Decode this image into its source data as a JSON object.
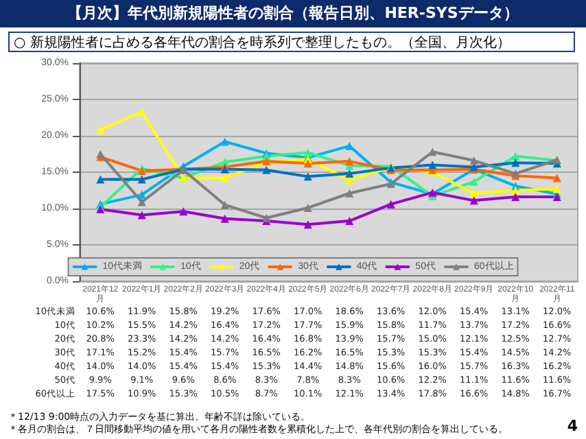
{
  "chart_data": {
    "type": "line",
    "title": "【月次】年代別新規陽性者の割合（報告日別、HER-SYSデータ）",
    "subtitle": "○ 新規陽性者に占める各年代の割合を時系列で整理したもの。（全国、月次化）",
    "categories": [
      "2021年12月",
      "2022年1月",
      "2022年2月",
      "2022年3月",
      "2022年4月",
      "2022年5月",
      "2022年6月",
      "2022年7月",
      "2022年8月",
      "2022年9月",
      "2022年10月",
      "2022年11月"
    ],
    "series": [
      {
        "name": "10代未満",
        "color": "#00b0f0",
        "values": [
          10.6,
          11.9,
          15.8,
          19.2,
          17.6,
          17.0,
          18.6,
          13.6,
          12.0,
          15.4,
          13.1,
          12.0
        ],
        "value_labels": [
          "10.6%",
          "11.9%",
          "15.8%",
          "19.2%",
          "17.6%",
          "17.0%",
          "18.6%",
          "13.6%",
          "12.0%",
          "15.4%",
          "13.1%",
          "12.0%"
        ]
      },
      {
        "name": "10代",
        "color": "#33f08c",
        "values": [
          10.2,
          15.5,
          14.2,
          16.4,
          17.2,
          17.7,
          15.9,
          15.8,
          11.7,
          13.7,
          17.2,
          16.6
        ],
        "value_labels": [
          "10.2%",
          "15.5%",
          "14.2%",
          "16.4%",
          "17.2%",
          "17.7%",
          "15.9%",
          "15.8%",
          "11.7%",
          "13.7%",
          "17.2%",
          "16.6%"
        ]
      },
      {
        "name": "20代",
        "color": "#ffff00",
        "values": [
          20.8,
          23.3,
          14.2,
          14.2,
          16.4,
          16.8,
          13.9,
          15.7,
          15.0,
          12.1,
          12.5,
          12.7
        ],
        "value_labels": [
          "20.8%",
          "23.3%",
          "14.2%",
          "14.2%",
          "16.4%",
          "16.8%",
          "13.9%",
          "15.7%",
          "15.0%",
          "12.1%",
          "12.5%",
          "12.7%"
        ]
      },
      {
        "name": "30代",
        "color": "#ff6600",
        "values": [
          17.1,
          15.2,
          15.4,
          15.7,
          16.5,
          16.2,
          16.5,
          15.3,
          15.3,
          15.4,
          14.5,
          14.2
        ],
        "value_labels": [
          "17.1%",
          "15.2%",
          "15.4%",
          "15.7%",
          "16.5%",
          "16.2%",
          "16.5%",
          "15.3%",
          "15.3%",
          "15.4%",
          "14.5%",
          "14.2%"
        ]
      },
      {
        "name": "40代",
        "color": "#0070c0",
        "values": [
          14.0,
          14.0,
          15.4,
          15.4,
          15.3,
          14.4,
          14.8,
          15.6,
          16.0,
          15.7,
          16.3,
          16.2
        ],
        "value_labels": [
          "14.0%",
          "14.0%",
          "15.4%",
          "15.4%",
          "15.3%",
          "14.4%",
          "14.8%",
          "15.6%",
          "16.0%",
          "15.7%",
          "16.3%",
          "16.2%"
        ]
      },
      {
        "name": "50代",
        "color": "#9900cc",
        "values": [
          9.9,
          9.1,
          9.6,
          8.6,
          8.3,
          7.8,
          8.3,
          10.6,
          12.2,
          11.1,
          11.6,
          11.6
        ],
        "value_labels": [
          "9.9%",
          "9.1%",
          "9.6%",
          "8.6%",
          "8.3%",
          "7.8%",
          "8.3%",
          "10.6%",
          "12.2%",
          "11.1%",
          "11.6%",
          "11.6%"
        ]
      },
      {
        "name": "60代以上",
        "color": "#7f7f7f",
        "values": [
          17.5,
          10.9,
          15.3,
          10.5,
          8.7,
          10.1,
          12.1,
          13.4,
          17.8,
          16.6,
          14.8,
          16.7
        ],
        "value_labels": [
          "17.5%",
          "10.9%",
          "15.3%",
          "10.5%",
          "8.7%",
          "10.1%",
          "12.1%",
          "13.4%",
          "17.8%",
          "16.6%",
          "14.8%",
          "16.7%"
        ]
      }
    ],
    "ylim": [
      0,
      30
    ],
    "yticks": [
      {
        "value": 0,
        "label": "0.0%"
      },
      {
        "value": 5,
        "label": "5.0%"
      },
      {
        "value": 10,
        "label": "10.0%"
      },
      {
        "value": 15,
        "label": "15.0%"
      },
      {
        "value": 20,
        "label": "20.0%"
      },
      {
        "value": 25,
        "label": "25.0%"
      },
      {
        "value": 30,
        "label": "30.0%"
      }
    ],
    "grid": "y",
    "legend": "bottom",
    "marker": "triangle",
    "line_style": "solid",
    "annotations": [
      "＊12/13 9:00時点の入力データを基に算出。年齢不詳は除いている。",
      "＊各月の割合は、７日間移動平均の値を用いて各月の陽性者数を累積化した上で、各年代別の割合を算出している。",
      "4"
    ]
  }
}
